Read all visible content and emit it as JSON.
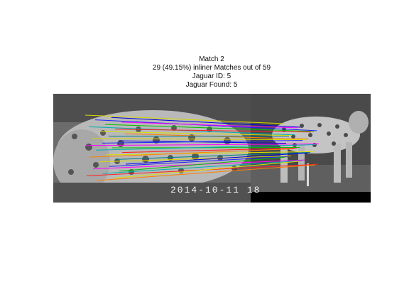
{
  "figure": {
    "title_lines": [
      "Match 2",
      "29 (49.15%) inliner Matches out of 59",
      "Jaguar ID: 5",
      "Jaguar Found: 5"
    ],
    "timestamp_overlay": "2014-10-11  18",
    "match_count_drawn": 29,
    "line_colors": [
      "#d8d800",
      "#0000e0",
      "#2020ff",
      "#ff00ff",
      "#00c000",
      "#00b0b0",
      "#ff2020",
      "#e0e000",
      "#ff8000",
      "#008080"
    ]
  }
}
